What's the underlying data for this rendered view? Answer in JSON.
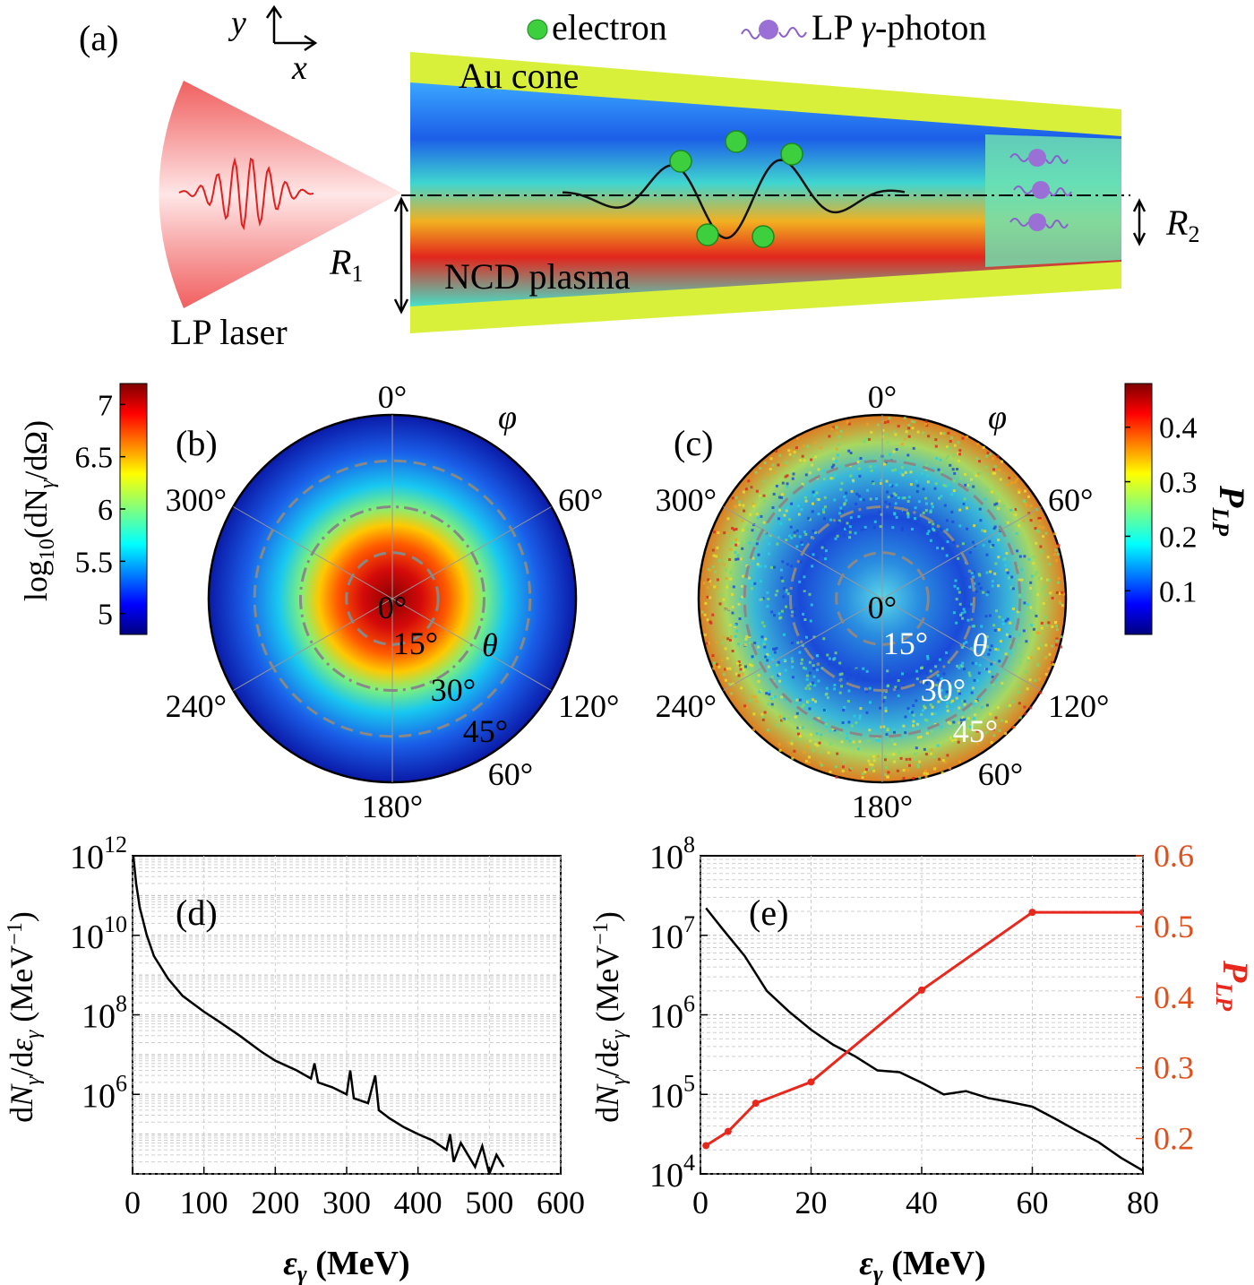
{
  "panel_labels": {
    "a": "(a)",
    "b": "(b)",
    "c": "(c)",
    "d": "(d)",
    "e": "(e)"
  },
  "schematic": {
    "axis_y": "y",
    "axis_x": "x",
    "legend_electron": "electron",
    "legend_photon_prefix": "LP ",
    "legend_photon_gamma": "γ",
    "legend_photon_suffix": "-photon",
    "cone_label": "Au cone",
    "plasma_label": "NCD plasma",
    "laser_label": "LP laser",
    "r1_main": "R",
    "r1_sub": "1",
    "r2_main": "R",
    "r2_sub": "2",
    "colors": {
      "laser": "#f04a4a",
      "cone": "#d8f03a",
      "electron": "#3ecf3e",
      "photon": "#9a6fd6"
    }
  },
  "panel_b": {
    "colorbar_label": "log₁₀(dN_γ/dΩ)",
    "colorbar_ticks": [
      "7",
      "6.5",
      "6",
      "5.5",
      "5"
    ],
    "colorbar_range": [
      4.8,
      7.2
    ],
    "phi_label": "φ",
    "theta_label": "θ",
    "phi_ticks": [
      "0°",
      "60°",
      "120°",
      "180°",
      "240°",
      "300°"
    ],
    "theta_ticks": [
      "0°",
      "15°",
      "30°",
      "45°",
      "60°"
    ],
    "colormap": "jet"
  },
  "panel_c": {
    "colorbar_label": "P_LP",
    "colorbar_ticks": [
      "0.4",
      "0.3",
      "0.2",
      "0.1"
    ],
    "colorbar_range": [
      0.02,
      0.48
    ],
    "phi_label": "φ",
    "theta_label": "θ",
    "phi_ticks": [
      "0°",
      "60°",
      "120°",
      "180°",
      "240°",
      "300°"
    ],
    "theta_ticks": [
      "0°",
      "15°",
      "30°",
      "45°",
      "60°"
    ],
    "colormap": "jet"
  },
  "chart_data": [
    {
      "type": "line",
      "panel": "d",
      "xlabel": "ε_γ (MeV)",
      "ylabel": "dN_γ/dε_γ (MeV⁻¹)",
      "xlim": [
        0,
        600
      ],
      "ylim": [
        10000.0,
        1000000000000.0
      ],
      "yscale": "log",
      "grid": true,
      "x_ticks": [
        "0",
        "100",
        "200",
        "300",
        "400",
        "500",
        "600"
      ],
      "y_ticks": [
        {
          "base": "10",
          "exp": "12"
        },
        {
          "base": "10",
          "exp": "10"
        },
        {
          "base": "10",
          "exp": "8"
        },
        {
          "base": "10",
          "exp": "6"
        }
      ],
      "series": [
        {
          "color": "#000000",
          "x": [
            1,
            5,
            10,
            20,
            30,
            50,
            70,
            100,
            120,
            150,
            180,
            200,
            230,
            250,
            255,
            260,
            280,
            300,
            305,
            310,
            330,
            340,
            345,
            360,
            380,
            400,
            420,
            440,
            445,
            450,
            460,
            470,
            480,
            490,
            500,
            510,
            520
          ],
          "y": [
            1000000000000.0,
            200000000000.0,
            50000000000.0,
            10000000000.0,
            3000000000.0,
            800000000.0,
            300000000.0,
            120000000.0,
            70000000.0,
            30000000.0,
            12000000.0,
            7000000.0,
            4000000.0,
            2500000.0,
            6000000.0,
            2000000.0,
            1500000.0,
            1000000.0,
            4000000.0,
            800000.0,
            600000.0,
            3000000.0,
            400000.0,
            250000.0,
            150000.0,
            100000.0,
            70000.0,
            40000.0,
            100000.0,
            20000.0,
            60000.0,
            30000.0,
            15000.0,
            50000.0,
            10000.0,
            30000.0,
            15000.0
          ]
        }
      ]
    },
    {
      "type": "line",
      "panel": "e",
      "xlabel": "ε_γ (MeV)",
      "ylabel": "dN_γ/dε_γ (MeV⁻¹)",
      "ylabel_right": "P_LP",
      "xlim": [
        0,
        80
      ],
      "ylim": [
        10000.0,
        100000000.0
      ],
      "ylim_right": [
        0.15,
        0.6
      ],
      "yscale": "log",
      "grid": true,
      "x_ticks": [
        "0",
        "20",
        "40",
        "60",
        "80"
      ],
      "y_ticks": [
        {
          "base": "10",
          "exp": "8"
        },
        {
          "base": "10",
          "exp": "7"
        },
        {
          "base": "10",
          "exp": "6"
        },
        {
          "base": "10",
          "exp": "5"
        },
        {
          "base": "10",
          "exp": "4"
        }
      ],
      "y_ticks_right": [
        "0.6",
        "0.5",
        "0.4",
        "0.3",
        "0.2"
      ],
      "series": [
        {
          "color": "#000000",
          "axis": "left",
          "x": [
            1,
            4,
            8,
            12,
            16,
            20,
            24,
            28,
            32,
            36,
            40,
            44,
            48,
            52,
            56,
            60,
            64,
            68,
            72,
            76,
            80
          ],
          "y": [
            22000000.0,
            12000000.0,
            5500000.0,
            2000000.0,
            1100000.0,
            650000.0,
            420000.0,
            300000.0,
            200000.0,
            190000.0,
            140000.0,
            100000.0,
            110000.0,
            90000.0,
            80000.0,
            70000.0,
            50000.0,
            35000.0,
            25000.0,
            16000.0,
            11000.0
          ]
        },
        {
          "color": "#e8281c",
          "axis": "right",
          "markers": true,
          "x": [
            1,
            5,
            10,
            20,
            40,
            60,
            80
          ],
          "y": [
            0.19,
            0.21,
            0.25,
            0.28,
            0.41,
            0.52,
            0.52
          ]
        }
      ]
    }
  ]
}
